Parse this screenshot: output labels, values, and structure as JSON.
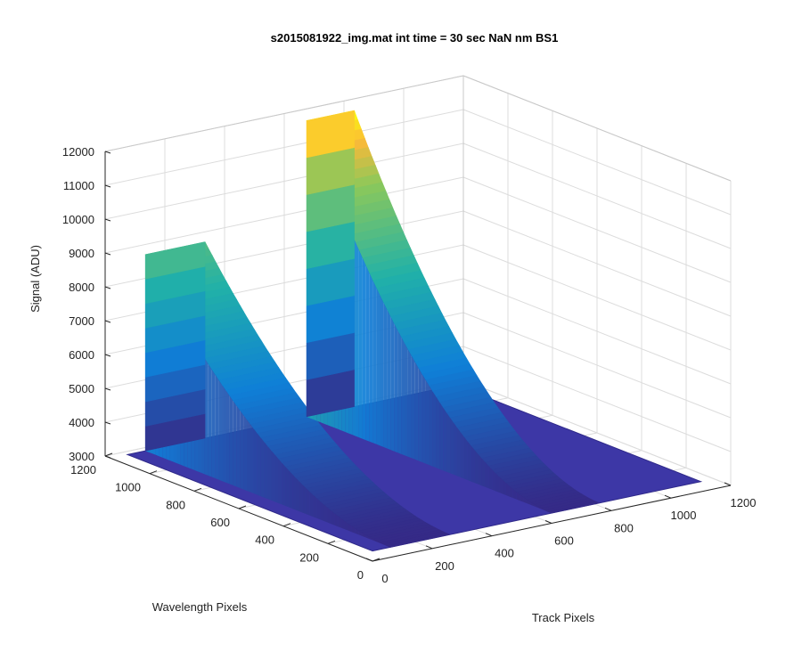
{
  "chart_data": {
    "type": "surface3d",
    "title": "s2015081922_img.mat int time = 30 sec  NaN nm BS1",
    "xlabel": "Track Pixels",
    "ylabel": "Wavelength Pixels",
    "zlabel": "Signal (ADU)",
    "xlim": [
      0,
      1200
    ],
    "ylim": [
      0,
      1200
    ],
    "zlim": [
      3000,
      12000
    ],
    "xticks": [
      "0",
      "200",
      "400",
      "600",
      "800",
      "1000",
      "1200"
    ],
    "yticks": [
      "0",
      "200",
      "400",
      "600",
      "800",
      "1000",
      "1200"
    ],
    "zticks": [
      "3000",
      "4000",
      "5000",
      "6000",
      "7000",
      "8000",
      "9000",
      "10000",
      "11000",
      "12000"
    ],
    "grid": true,
    "colormap": "parula",
    "colors": {
      "low": "#352a87",
      "mid": "#0f7fd7",
      "teal": "#21b1a8",
      "high": "#f9fb0e"
    },
    "series": [
      {
        "baseline": 3300,
        "x_range": [
          0,
          1100
        ],
        "y_range": [
          0,
          1100
        ],
        "peaks": [
          {
            "x_range": [
              60,
              260
            ],
            "y_start": 1100,
            "y_end": 0,
            "max": 9100
          },
          {
            "x_range": [
              600,
              760
            ],
            "y_start": 1100,
            "y_end": 0,
            "max": 12050
          }
        ]
      }
    ]
  }
}
